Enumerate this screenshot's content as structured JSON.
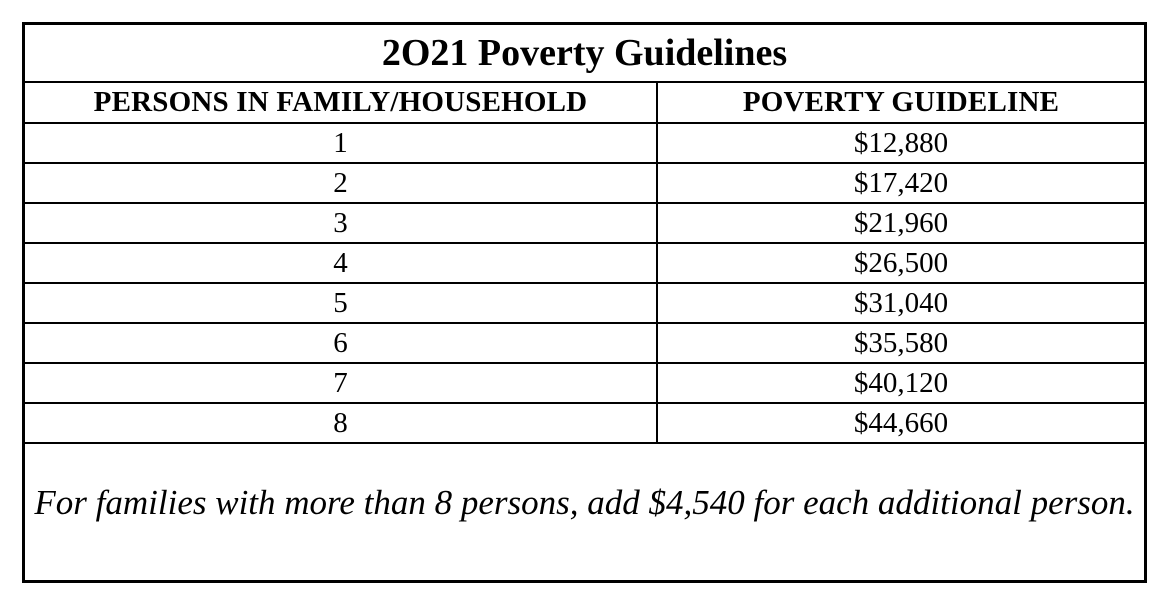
{
  "title": "2O21 Poverty Guidelines",
  "columns": {
    "persons": "PERSONS IN FAMILY/HOUSEHOLD",
    "guideline": "POVERTY GUIDELINE"
  },
  "rows": [
    {
      "persons": "1",
      "guideline": "$12,880"
    },
    {
      "persons": "2",
      "guideline": "$17,420"
    },
    {
      "persons": "3",
      "guideline": "$21,960"
    },
    {
      "persons": "4",
      "guideline": "$26,500"
    },
    {
      "persons": "5",
      "guideline": "$31,040"
    },
    {
      "persons": "6",
      "guideline": "$35,580"
    },
    {
      "persons": "7",
      "guideline": "$40,120"
    },
    {
      "persons": "8",
      "guideline": "$44,660"
    }
  ],
  "footnote": "For families with more than 8 persons, add $4,540 for each additional person."
}
